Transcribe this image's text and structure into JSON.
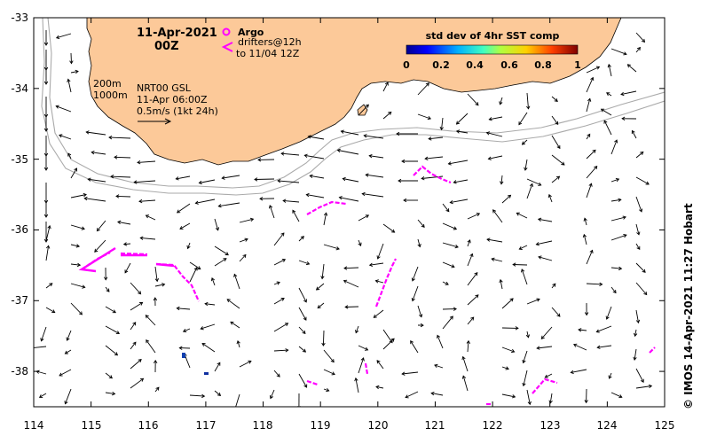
{
  "date_title": "11-Apr-2021",
  "time_title": "00Z",
  "argo_legend": {
    "argo_label": "Argo",
    "drifter_label": "drifters@12h",
    "drifter_sub": "to 11/04 12Z"
  },
  "colorbar": {
    "title": "std dev of 4hr SST comp",
    "ticks": [
      "0",
      "0.2",
      "0.4",
      "0.6",
      "0.8",
      "1"
    ]
  },
  "info": {
    "iso_200": "200m",
    "iso_1000": "1000m",
    "model": "NRT00 GSL",
    "model_time": "11-Apr 06:00Z",
    "scale_label": "0.5m/s (1kt 24h)"
  },
  "credit": "© IMOS 14-Apr-2021 11:27 Hobart",
  "axes": {
    "x_ticks": [
      "114",
      "115",
      "116",
      "117",
      "118",
      "119",
      "120",
      "121",
      "122",
      "123",
      "124",
      "125"
    ],
    "y_ticks": [
      "-33",
      "-34",
      "-35",
      "-36",
      "-37",
      "-38"
    ],
    "lon_range": [
      114,
      125
    ],
    "lat_range": [
      -38.5,
      -33
    ]
  },
  "colors": {
    "land": "#fcc999",
    "drifter": "#ff00ff",
    "iso": "#aaaaaa"
  }
}
